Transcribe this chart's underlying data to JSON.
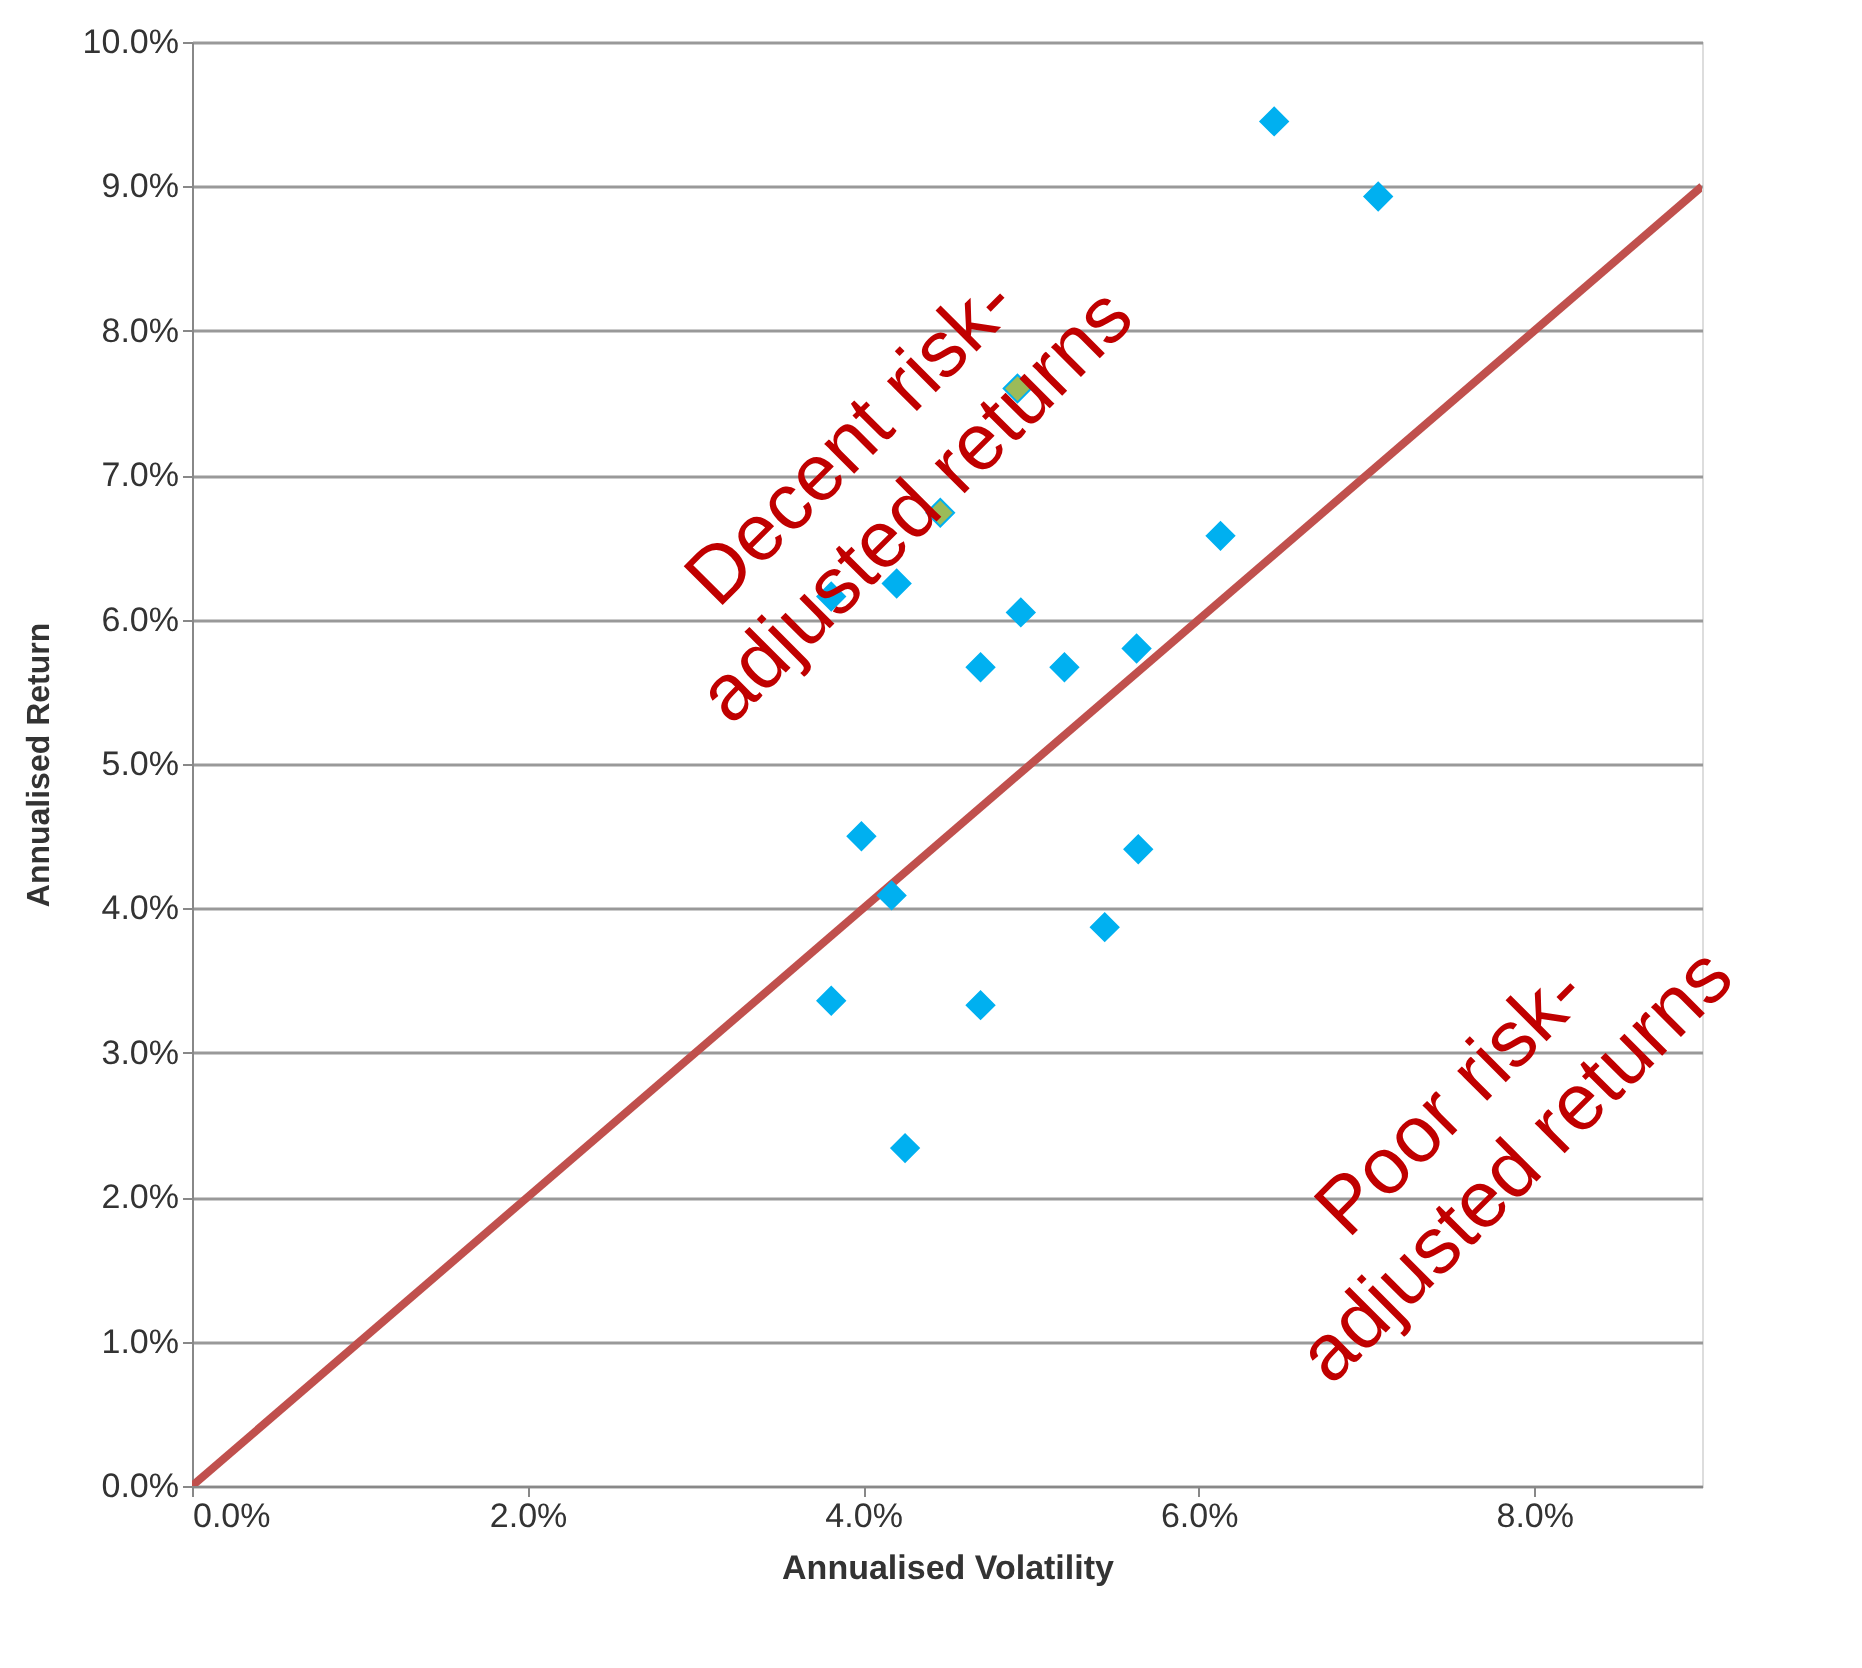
{
  "chart_data": {
    "type": "scatter",
    "xlabel": "Annualised Volatility",
    "ylabel": "Annualised Return",
    "xlim": [
      0,
      9
    ],
    "ylim": [
      0,
      10
    ],
    "xticks": [
      {
        "value": 0,
        "label": "0.0%"
      },
      {
        "value": 2,
        "label": "2.0%"
      },
      {
        "value": 4,
        "label": "4.0%"
      },
      {
        "value": 6,
        "label": "6.0%"
      },
      {
        "value": 8,
        "label": "8.0%"
      }
    ],
    "yticks": [
      {
        "value": 0,
        "label": "0.0%"
      },
      {
        "value": 1,
        "label": "1.0%"
      },
      {
        "value": 2,
        "label": "2.0%"
      },
      {
        "value": 3,
        "label": "3.0%"
      },
      {
        "value": 4,
        "label": "4.0%"
      },
      {
        "value": 5,
        "label": "5.0%"
      },
      {
        "value": 6,
        "label": "6.0%"
      },
      {
        "value": 7,
        "label": "7.0%"
      },
      {
        "value": 8,
        "label": "8.0%"
      },
      {
        "value": 9,
        "label": "9.0%"
      },
      {
        "value": 10,
        "label": "10.0%"
      }
    ],
    "grid": "y",
    "annotations": [
      "Decent risk-\nadjusted returns",
      "Poor risk-\nadjusted returns"
    ],
    "series": [
      {
        "type": "line",
        "color": "#c0504d",
        "x": [
          0,
          9
        ],
        "values": [
          0,
          9
        ]
      },
      {
        "color": "#00b0f0",
        "marker": "diamond",
        "x": [
          6.45,
          7.07,
          4.92,
          4.46,
          6.13,
          3.81,
          4.2,
          4.94,
          4.7,
          5.2,
          5.63,
          3.99,
          4.17,
          5.64,
          5.44,
          3.81,
          4.7,
          4.25
        ],
        "values": [
          9.45,
          8.93,
          7.6,
          6.74,
          6.58,
          6.16,
          6.25,
          6.05,
          5.67,
          5.67,
          5.8,
          4.5,
          4.09,
          4.41,
          3.87,
          3.36,
          3.33,
          2.34
        ],
        "colors": [
          "#00b0f0",
          "#00b0f0",
          "#9bbb59",
          "#9bbb59",
          "#00b0f0",
          "#00b0f0",
          "#00b0f0",
          "#00b0f0",
          "#00b0f0",
          "#00b0f0",
          "#00b0f0",
          "#00b0f0",
          "#00b0f0",
          "#00b0f0",
          "#00b0f0",
          "#00b0f0",
          "#00b0f0",
          "#00b0f0"
        ]
      }
    ]
  }
}
